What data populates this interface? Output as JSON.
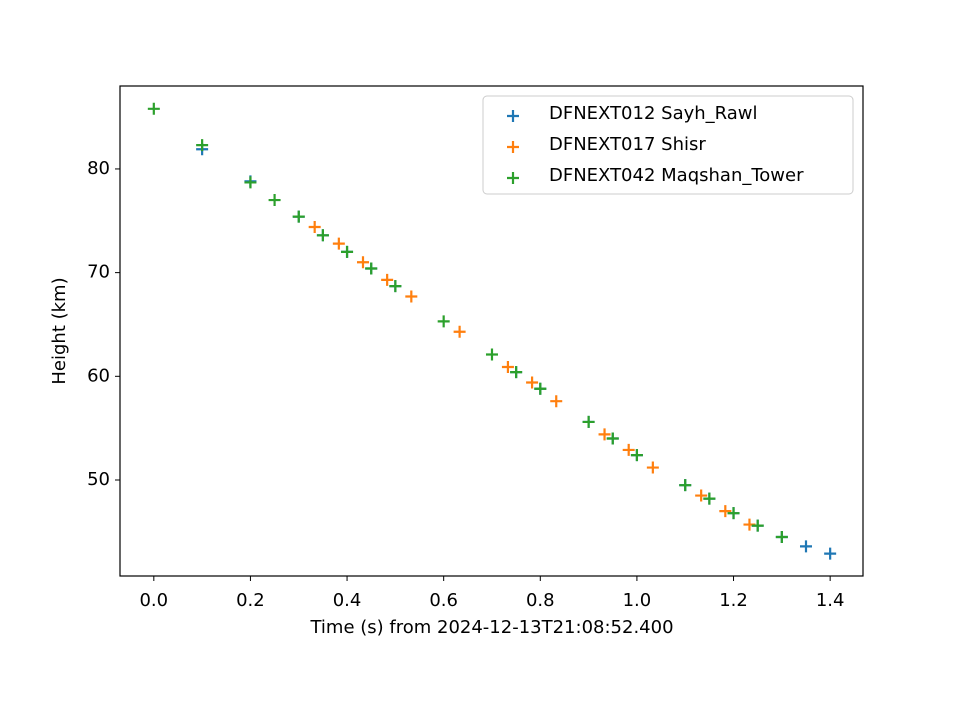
{
  "chart_data": {
    "type": "scatter",
    "xlabel": "Time (s) from 2024-12-13T21:08:52.400",
    "ylabel": "Height (km)",
    "xlim": [
      -0.07,
      1.468
    ],
    "ylim": [
      40.74,
      88.0
    ],
    "xticks": [
      {
        "value": 0,
        "label": "0.0"
      },
      0.2,
      0.4,
      0.6,
      0.8,
      {
        "value": 1,
        "label": "1.0"
      },
      1.2,
      1.4
    ],
    "yticks": [
      50,
      60,
      70,
      80
    ],
    "legend": "upper right",
    "series": [
      {
        "name": "DFNEXT012 Sayh_Rawl",
        "color": "#1f77b4",
        "x": [
          0.1,
          0.2,
          0.3,
          0.35,
          0.4,
          0.45,
          0.5,
          0.75,
          0.8,
          0.9,
          0.95,
          1.0,
          1.1,
          1.15,
          1.2,
          1.25,
          1.3,
          1.35,
          1.4
        ],
        "values": [
          81.9,
          78.8,
          75.4,
          73.6,
          72.0,
          70.4,
          68.7,
          60.4,
          58.8,
          55.6,
          54.0,
          52.4,
          49.5,
          48.2,
          46.8,
          45.6,
          44.5,
          43.6,
          42.9
        ]
      },
      {
        "name": "DFNEXT017 Shisr",
        "color": "#ff7f0e",
        "x": [
          0.333,
          0.383,
          0.433,
          0.483,
          0.533,
          0.633,
          0.733,
          0.783,
          0.833,
          0.933,
          0.983,
          1.033,
          1.133,
          1.183,
          1.233
        ],
        "values": [
          74.4,
          72.8,
          71.0,
          69.3,
          67.7,
          64.3,
          60.9,
          59.4,
          57.6,
          54.4,
          52.9,
          51.2,
          48.5,
          47.0,
          45.7
        ]
      },
      {
        "name": "DFNEXT042 Maqshan_Tower",
        "color": "#2ca02c",
        "x": [
          0.0,
          0.1,
          0.2,
          0.25,
          0.3,
          0.35,
          0.4,
          0.45,
          0.5,
          0.6,
          0.7,
          0.75,
          0.8,
          0.9,
          0.95,
          1.0,
          1.1,
          1.15,
          1.2,
          1.25,
          1.3
        ],
        "values": [
          85.8,
          82.3,
          78.7,
          77.0,
          75.4,
          73.6,
          72.0,
          70.4,
          68.7,
          65.3,
          62.1,
          60.4,
          58.8,
          55.6,
          54.0,
          52.4,
          49.5,
          48.2,
          46.8,
          45.6,
          44.5
        ]
      }
    ]
  }
}
